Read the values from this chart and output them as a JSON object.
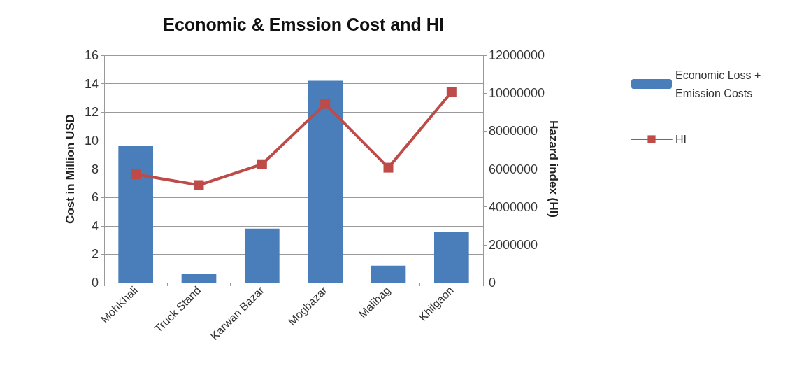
{
  "chart_data": {
    "type": "bar",
    "title": "Economic & Emssion Cost and HI",
    "ylabel": "Cost in Million USD",
    "y2label": "Hazard index (HI)",
    "categories": [
      "MohKhali",
      "Truck Stand",
      "Karwan Bazar",
      "Mogbazar",
      "Malibag",
      "Khilgaon"
    ],
    "series": [
      {
        "name": "Economic Loss + Emission Costs",
        "color": "#4a7ebb",
        "values": [
          9.6,
          0.6,
          3.8,
          14.2,
          1.2,
          3.6
        ]
      },
      {
        "name": "HI",
        "type": "line",
        "axis": "y2",
        "color": "#be4b48",
        "marker": "square",
        "values": [
          5720000,
          5150000,
          6250000,
          9430000,
          6070000,
          10060000
        ]
      }
    ],
    "ylim": [
      0,
      16
    ],
    "yticks": [
      0,
      2,
      4,
      6,
      8,
      10,
      12,
      14,
      16
    ],
    "y2lim": [
      0,
      12000000
    ],
    "y2ticks": [
      0,
      2000000,
      4000000,
      6000000,
      8000000,
      10000000,
      12000000
    ],
    "grid": "y",
    "legend": "right"
  }
}
